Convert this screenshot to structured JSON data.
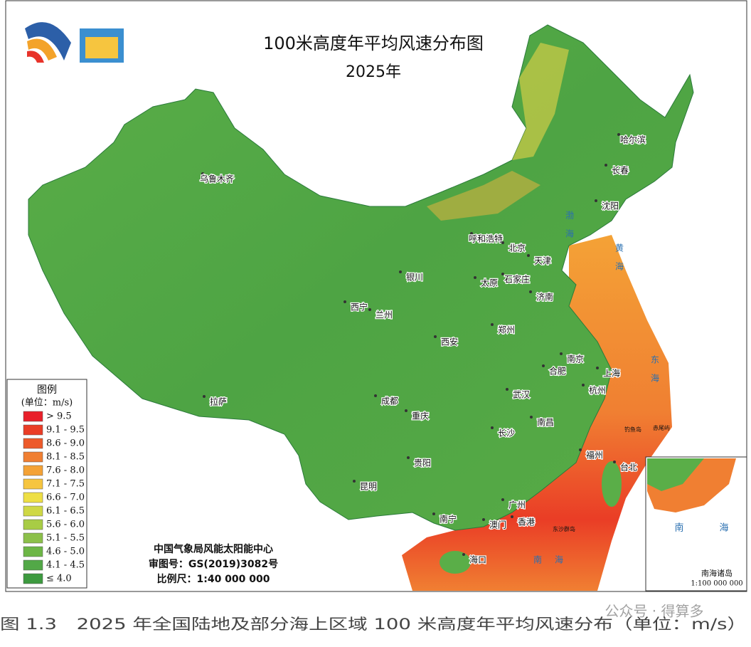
{
  "header": {
    "title": "100米高度年平均风速分布图",
    "subtitle": "2025年"
  },
  "legend": {
    "title": "图例",
    "unit": "(单位：m/s)",
    "items": [
      {
        "label": "> 9.5",
        "color": "#e8202a"
      },
      {
        "label": "9.1 - 9.5",
        "color": "#ea3d26"
      },
      {
        "label": "8.6 - 9.0",
        "color": "#ed5a2a"
      },
      {
        "label": "8.1 - 8.5",
        "color": "#f07f32"
      },
      {
        "label": "7.6 - 8.0",
        "color": "#f4a236"
      },
      {
        "label": "7.1 - 7.5",
        "color": "#f6c53f"
      },
      {
        "label": "6.6 - 7.0",
        "color": "#eedf44"
      },
      {
        "label": "6.1 - 6.5",
        "color": "#cfd845"
      },
      {
        "label": "5.6 - 6.0",
        "color": "#a8cc45"
      },
      {
        "label": "5.1 - 5.5",
        "color": "#8cc04a"
      },
      {
        "label": "4.6 - 5.0",
        "color": "#6db646"
      },
      {
        "label": "4.1 - 4.5",
        "color": "#52a847"
      },
      {
        "label": "≤ 4.0",
        "color": "#3d9a3f"
      }
    ]
  },
  "cities": [
    "乌鲁木齐",
    "哈尔滨",
    "长春",
    "沈阳",
    "呼和浩特",
    "北京",
    "天津",
    "银川",
    "太原",
    "石家庄",
    "济南",
    "西宁",
    "兰州",
    "郑州",
    "西安",
    "南京",
    "合肥",
    "上海",
    "成都",
    "武汉",
    "杭州",
    "重庆",
    "南昌",
    "长沙",
    "福州",
    "台北",
    "贵阳",
    "昆明",
    "拉萨",
    "南宁",
    "广州",
    "澳门",
    "香港",
    "海口"
  ],
  "seas": [
    "渤海",
    "黄海",
    "东海",
    "南海"
  ],
  "islands": [
    "钓鱼岛",
    "赤尾屿",
    "东沙群岛"
  ],
  "credits": [
    "中国气象局风能太阳能中心",
    "审图号：GS(2019)3082号",
    "比例尺：1:40 000 000"
  ],
  "inset": {
    "title": "南海诸岛",
    "scale": "1:100 000 000",
    "sea": [
      "南",
      "海"
    ]
  },
  "caption": "图 1.3　2025 年全国陆地及部分海上区域 100 米高度年平均风速分布（单位：m/s）",
  "watermark": "公众号 · 得算多"
}
